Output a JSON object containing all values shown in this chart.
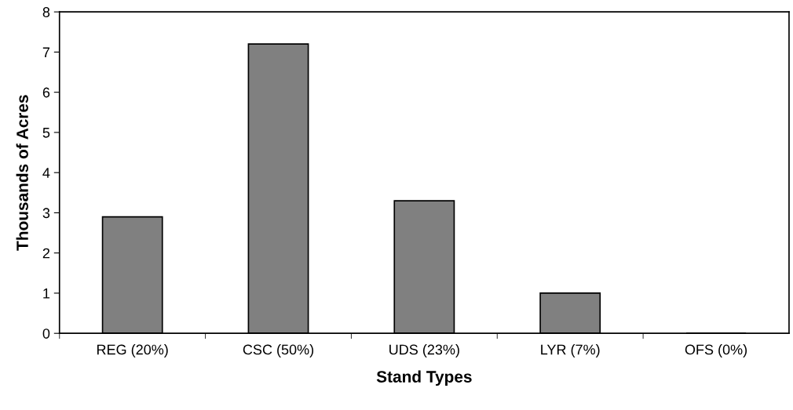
{
  "chart_data": {
    "type": "bar",
    "xlabel": "Stand Types",
    "ylabel": "Thousands of Acres",
    "categories": [
      "REG (20%)",
      "CSC (50%)",
      "UDS (23%)",
      "LYR (7%)",
      "OFS (0%)"
    ],
    "values": [
      2.9,
      7.2,
      3.3,
      1.0,
      0
    ],
    "color": "#808080",
    "ylim": [
      0,
      8
    ],
    "yticks": [
      0,
      1,
      2,
      3,
      4,
      5,
      6,
      7,
      8
    ],
    "grid": false,
    "legend": false
  }
}
